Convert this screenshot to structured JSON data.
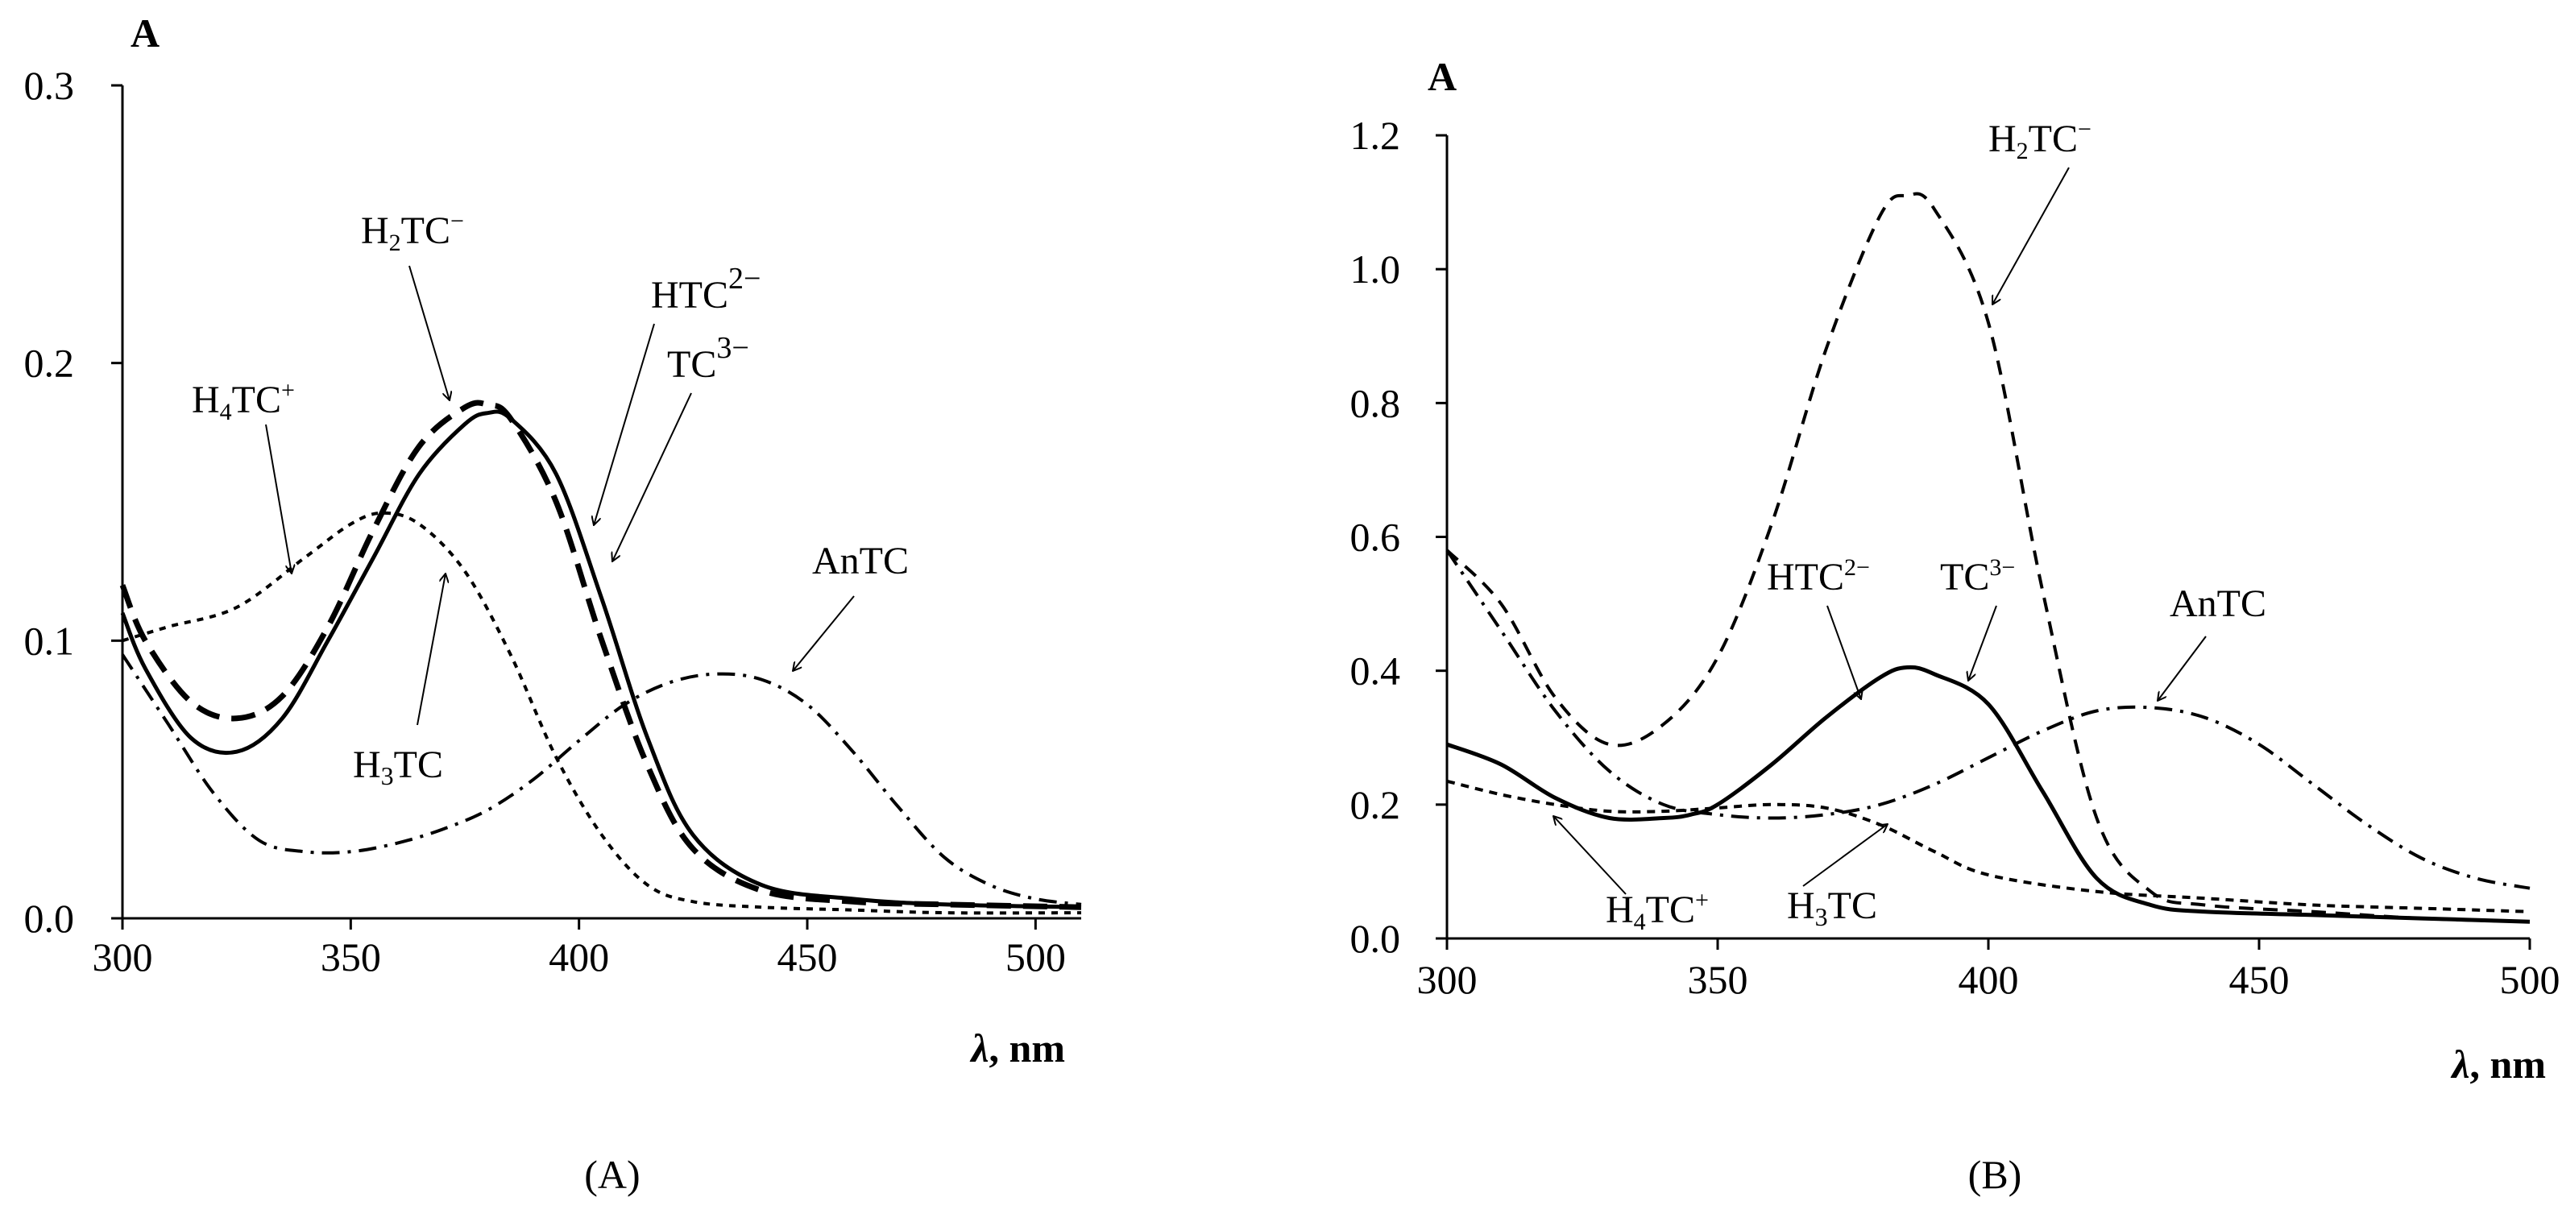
{
  "chart_data": [
    {
      "id": "A",
      "type": "line",
      "panel_label": "(A)",
      "title": "",
      "xlabel": "λ, nm",
      "ylabel": "A",
      "xlim": [
        300,
        510
      ],
      "ylim": [
        0,
        0.3
      ],
      "xticks": [
        300,
        350,
        400,
        450,
        500
      ],
      "xtick_labels": [
        "300",
        "350",
        "400",
        "450",
        "500"
      ],
      "yticks": [
        0,
        0.1,
        0.2,
        0.3
      ],
      "ytick_labels": [
        "0.0",
        "0.1",
        "0.2",
        "0.3"
      ],
      "grid": false,
      "series": [
        {
          "name": "H4TC+",
          "style": "short-dash",
          "x": [
            300,
            310,
            325,
            340,
            350,
            357,
            365,
            375,
            385,
            395,
            405,
            415,
            425,
            440,
            460,
            480,
            510
          ],
          "y": [
            0.1,
            0.105,
            0.112,
            0.13,
            0.142,
            0.146,
            0.142,
            0.125,
            0.095,
            0.058,
            0.03,
            0.012,
            0.006,
            0.004,
            0.003,
            0.002,
            0.002
          ]
        },
        {
          "name": "H2TC-",
          "style": "long-dash-bold",
          "x": [
            300,
            305,
            315,
            325,
            335,
            345,
            355,
            365,
            375,
            380,
            385,
            395,
            405,
            415,
            425,
            440,
            460,
            480,
            510
          ],
          "y": [
            0.12,
            0.1,
            0.078,
            0.072,
            0.08,
            0.105,
            0.14,
            0.17,
            0.184,
            0.185,
            0.18,
            0.15,
            0.1,
            0.055,
            0.025,
            0.01,
            0.006,
            0.005,
            0.004
          ]
        },
        {
          "name": "TC3-",
          "style": "solid",
          "x": [
            300,
            305,
            315,
            325,
            335,
            345,
            355,
            365,
            375,
            380,
            385,
            395,
            405,
            415,
            425,
            440,
            460,
            480,
            510
          ],
          "y": [
            0.11,
            0.09,
            0.065,
            0.06,
            0.072,
            0.1,
            0.13,
            0.16,
            0.178,
            0.182,
            0.18,
            0.16,
            0.115,
            0.065,
            0.03,
            0.012,
            0.007,
            0.005,
            0.004
          ]
        },
        {
          "name": "AnTC",
          "style": "dash-dot",
          "x": [
            300,
            310,
            320,
            330,
            340,
            350,
            360,
            370,
            380,
            390,
            400,
            410,
            420,
            430,
            440,
            450,
            460,
            470,
            480,
            490,
            500,
            510
          ],
          "y": [
            0.095,
            0.07,
            0.045,
            0.028,
            0.024,
            0.024,
            0.027,
            0.032,
            0.039,
            0.05,
            0.064,
            0.077,
            0.085,
            0.088,
            0.086,
            0.077,
            0.06,
            0.04,
            0.022,
            0.012,
            0.007,
            0.005
          ]
        }
      ],
      "annotations": [
        {
          "main": "H",
          "sub": "4",
          "rest": "TC",
          "sup": "+"
        },
        {
          "main": "H",
          "sub": "2",
          "rest": "TC",
          "sup": "−"
        },
        {
          "main": "HTC",
          "sub": "",
          "rest": "",
          "sup": "2−"
        },
        {
          "main": "TC",
          "sub": "",
          "rest": "",
          "sup": "3−"
        },
        {
          "main": "AnTC",
          "sub": "",
          "rest": "",
          "sup": ""
        },
        {
          "main": "H",
          "sub": "3",
          "rest": "TC",
          "sup": ""
        }
      ]
    },
    {
      "id": "B",
      "type": "line",
      "panel_label": "(B)",
      "title": "",
      "xlabel": "λ, nm",
      "ylabel": "A",
      "xlim": [
        300,
        500
      ],
      "ylim": [
        0,
        1.2
      ],
      "xticks": [
        300,
        350,
        400,
        450,
        500
      ],
      "xtick_labels": [
        "300",
        "350",
        "400",
        "450",
        "500"
      ],
      "yticks": [
        0,
        0.2,
        0.4,
        0.6,
        0.8,
        1.0,
        1.2
      ],
      "ytick_labels": [
        "0.0",
        "0.2",
        "0.4",
        "0.6",
        "0.8",
        "1.0",
        "1.2"
      ],
      "grid": false,
      "series": [
        {
          "name": "H2TC-",
          "style": "dash",
          "x": [
            300,
            310,
            320,
            330,
            340,
            350,
            360,
            370,
            380,
            385,
            390,
            400,
            410,
            420,
            430,
            440,
            460,
            480,
            500
          ],
          "y": [
            0.58,
            0.5,
            0.36,
            0.29,
            0.32,
            0.42,
            0.62,
            0.88,
            1.08,
            1.11,
            1.09,
            0.92,
            0.52,
            0.18,
            0.07,
            0.05,
            0.04,
            0.03,
            0.025
          ]
        },
        {
          "name": "HTC2-/TC3-",
          "style": "solid",
          "x": [
            300,
            310,
            320,
            330,
            340,
            345,
            350,
            360,
            370,
            380,
            385,
            390,
            400,
            410,
            420,
            430,
            440,
            460,
            480,
            500
          ],
          "y": [
            0.29,
            0.26,
            0.21,
            0.18,
            0.18,
            0.185,
            0.2,
            0.26,
            0.33,
            0.39,
            0.405,
            0.395,
            0.35,
            0.22,
            0.09,
            0.05,
            0.04,
            0.035,
            0.03,
            0.025
          ]
        },
        {
          "name": "AnTC",
          "style": "dash-dot",
          "x": [
            300,
            310,
            320,
            330,
            340,
            350,
            360,
            370,
            380,
            390,
            400,
            410,
            420,
            430,
            440,
            450,
            460,
            470,
            480,
            490,
            500
          ],
          "y": [
            0.58,
            0.46,
            0.34,
            0.25,
            0.2,
            0.185,
            0.18,
            0.185,
            0.2,
            0.23,
            0.27,
            0.31,
            0.34,
            0.345,
            0.33,
            0.29,
            0.23,
            0.17,
            0.12,
            0.09,
            0.075
          ]
        },
        {
          "name": "H4TC+/H3TC",
          "style": "short-dash",
          "x": [
            300,
            310,
            320,
            330,
            340,
            350,
            360,
            370,
            380,
            390,
            400,
            420,
            440,
            460,
            480,
            500
          ],
          "y": [
            0.235,
            0.215,
            0.2,
            0.19,
            0.19,
            0.195,
            0.2,
            0.195,
            0.17,
            0.13,
            0.095,
            0.07,
            0.06,
            0.05,
            0.045,
            0.04
          ]
        }
      ],
      "annotations": [
        {
          "main": "H",
          "sub": "2",
          "rest": "TC",
          "sup": "−"
        },
        {
          "main": "HTC",
          "sub": "",
          "rest": "",
          "sup": "2−"
        },
        {
          "main": "TC",
          "sub": "",
          "rest": "",
          "sup": "3−"
        },
        {
          "main": "AnTC",
          "sub": "",
          "rest": "",
          "sup": ""
        },
        {
          "main": "H",
          "sub": "4",
          "rest": "TC",
          "sup": "+"
        },
        {
          "main": "H",
          "sub": "3",
          "rest": "TC",
          "sup": ""
        }
      ]
    }
  ]
}
